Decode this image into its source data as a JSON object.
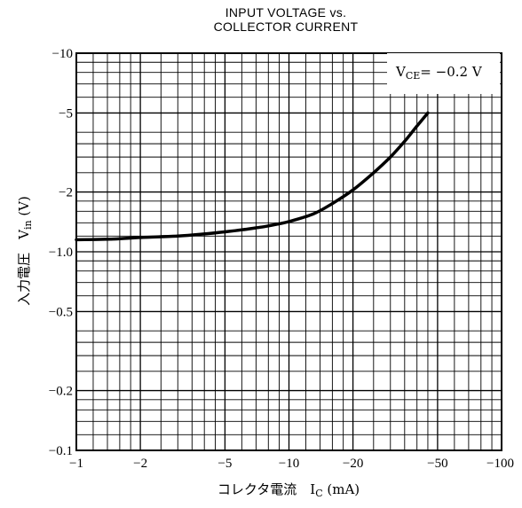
{
  "chart_data": {
    "type": "line",
    "title": "INPUT VOLTAGE vs.",
    "subtitle": "COLLECTOR CURRENT",
    "xlabel": "コレクタ電流　I",
    "xlabel_sub": "C",
    "xlabel_unit": " (mA)",
    "ylabel": "入力電圧　V",
    "ylabel_sub": "in",
    "ylabel_unit": " (V)",
    "annotation": {
      "main": "V",
      "sub": "CE",
      "value": "= −0.2  V"
    },
    "x_scale": "log",
    "y_scale": "log",
    "xlim": [
      1,
      100
    ],
    "ylim": [
      0.1,
      10
    ],
    "x_tick_labels": [
      {
        "v": 1,
        "label": "−1"
      },
      {
        "v": 2,
        "label": "−2"
      },
      {
        "v": 5,
        "label": "−5"
      },
      {
        "v": 10,
        "label": "−10"
      },
      {
        "v": 20,
        "label": "−20"
      },
      {
        "v": 50,
        "label": "−50"
      },
      {
        "v": 100,
        "label": "−100"
      }
    ],
    "y_tick_labels": [
      {
        "v": 10,
        "label": "−10"
      },
      {
        "v": 5,
        "label": "−5"
      },
      {
        "v": 2,
        "label": "−2"
      },
      {
        "v": 1,
        "label": "−1.0"
      },
      {
        "v": 0.5,
        "label": "−0.5"
      },
      {
        "v": 0.2,
        "label": "−0.2"
      },
      {
        "v": 0.1,
        "label": "−0.1"
      }
    ],
    "grid": true,
    "series": [
      {
        "x": [
          1,
          1.5,
          2,
          3,
          4,
          5,
          6,
          7,
          8,
          10,
          13,
          16,
          20,
          25,
          30,
          35,
          40,
          45
        ],
        "y": [
          1.15,
          1.16,
          1.18,
          1.2,
          1.23,
          1.26,
          1.29,
          1.32,
          1.35,
          1.42,
          1.55,
          1.75,
          2.05,
          2.5,
          3.0,
          3.6,
          4.3,
          5.0
        ]
      }
    ]
  }
}
